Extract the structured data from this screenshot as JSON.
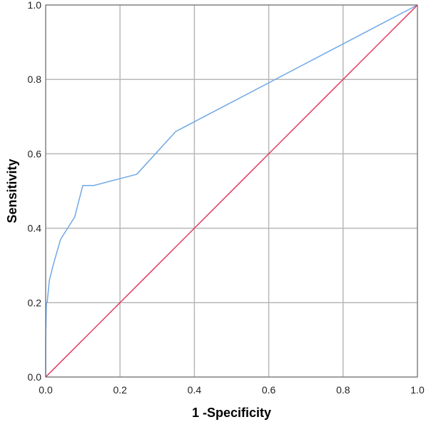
{
  "chart_data": {
    "type": "line",
    "title": "",
    "xlabel": "1 -Specificity",
    "ylabel": "Sensitivity",
    "xlim": [
      0,
      1
    ],
    "ylim": [
      0,
      1
    ],
    "x_ticks": [
      0.0,
      0.2,
      0.4,
      0.6,
      0.8,
      1.0
    ],
    "y_ticks": [
      0.0,
      0.2,
      0.4,
      0.6,
      0.8,
      1.0
    ],
    "x_tick_labels": [
      "0.0",
      "0.2",
      "0.4",
      "0.6",
      "0.8",
      "1.0"
    ],
    "y_tick_labels": [
      "0.0",
      "0.2",
      "0.4",
      "0.6",
      "0.8",
      "1.0"
    ],
    "grid": true,
    "legend": "none",
    "series": [
      {
        "color": "#6fa8e6",
        "x": [
          0.0,
          0.0,
          0.002,
          0.004,
          0.008,
          0.01,
          0.02,
          0.04,
          0.078,
          0.1,
          0.13,
          0.245,
          0.35,
          1.0
        ],
        "y": [
          0.0,
          0.1,
          0.2,
          0.2,
          0.24,
          0.26,
          0.3,
          0.37,
          0.43,
          0.515,
          0.515,
          0.545,
          0.66,
          1.0
        ]
      },
      {
        "color": "#e8355a",
        "x": [
          0.0,
          1.0
        ],
        "y": [
          0.0,
          1.0
        ]
      }
    ]
  }
}
